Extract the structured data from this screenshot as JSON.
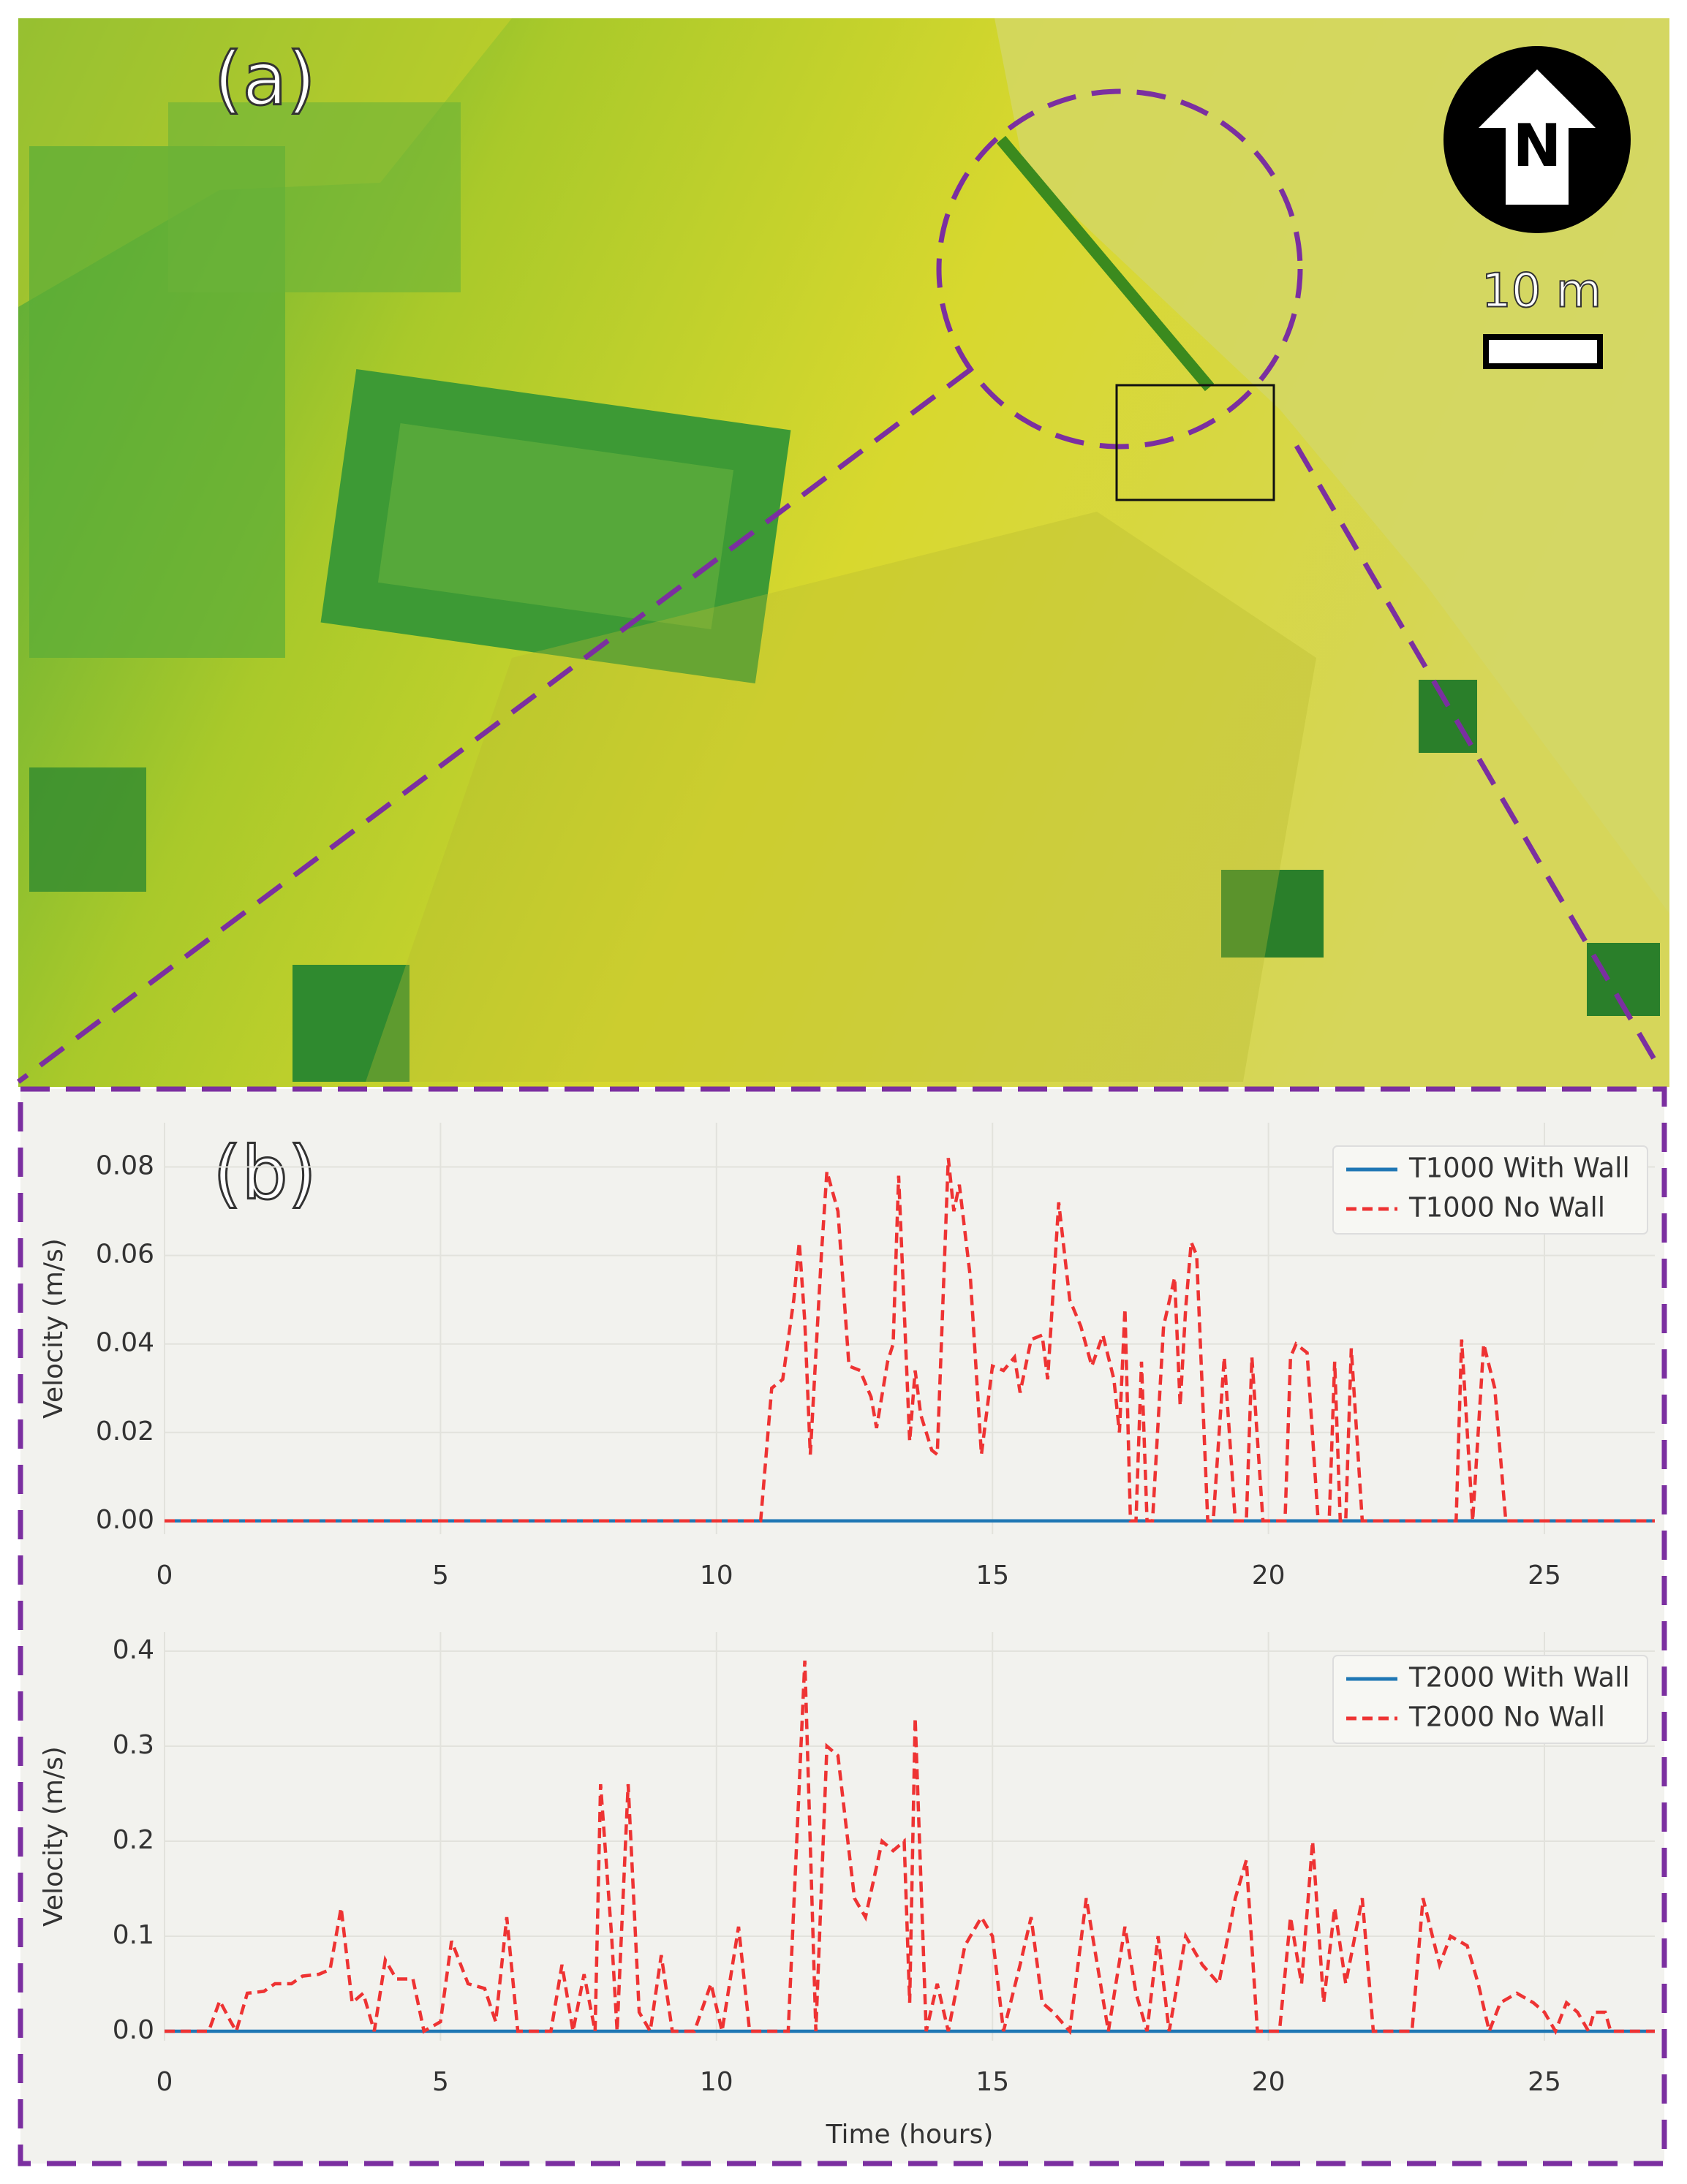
{
  "map": {
    "label": "(a)",
    "north": "N",
    "scale": "10 m"
  },
  "plot_label": "(b)",
  "chart_data": [
    {
      "type": "line",
      "ylabel": "Velocity (m/s)",
      "xlim": [
        0,
        27
      ],
      "xticks": [
        0,
        5,
        10,
        15,
        20,
        25
      ],
      "ylim": [
        -0.003,
        0.09
      ],
      "yticks": [
        {
          "value": 0,
          "label": "0.00"
        },
        0.02,
        0.04,
        0.06,
        0.08
      ],
      "grid": true,
      "legend": "upper right",
      "series": [
        {
          "name": "T1000 With Wall",
          "color": "#1f77b4",
          "dash": "solid",
          "x": [
            0,
            27
          ],
          "values": [
            0,
            0
          ]
        },
        {
          "name": "T1000 No Wall",
          "color": "#ee3333",
          "dash": "dashed",
          "x": [
            0,
            10.8,
            11.0,
            11.2,
            11.4,
            11.5,
            11.6,
            11.7,
            11.9,
            12.0,
            12.2,
            12.4,
            12.6,
            12.8,
            12.9,
            13.1,
            13.2,
            13.3,
            13.5,
            13.6,
            13.7,
            13.9,
            14.0,
            14.2,
            14.3,
            14.4,
            14.6,
            14.8,
            15.0,
            15.2,
            15.4,
            15.5,
            15.7,
            15.9,
            16.0,
            16.2,
            16.4,
            16.6,
            16.8,
            17.0,
            17.2,
            17.3,
            17.4,
            17.5,
            17.6,
            17.7,
            17.8,
            17.9,
            18.1,
            18.3,
            18.4,
            18.5,
            18.6,
            18.7,
            18.9,
            19.0,
            19.2,
            19.4,
            19.6,
            19.7,
            19.9,
            20.3,
            20.4,
            20.5,
            20.7,
            20.9,
            21.1,
            21.2,
            21.3,
            21.4,
            21.5,
            21.7,
            23.4,
            23.5,
            23.7,
            23.9,
            24.1,
            24.3,
            27
          ],
          "values": [
            0,
            0,
            0.03,
            0.032,
            0.05,
            0.063,
            0.045,
            0.015,
            0.06,
            0.079,
            0.07,
            0.035,
            0.034,
            0.028,
            0.021,
            0.036,
            0.04,
            0.078,
            0.018,
            0.034,
            0.024,
            0.016,
            0.015,
            0.082,
            0.07,
            0.076,
            0.055,
            0.015,
            0.035,
            0.034,
            0.037,
            0.029,
            0.041,
            0.042,
            0.032,
            0.072,
            0.05,
            0.044,
            0.035,
            0.042,
            0.032,
            0.02,
            0.048,
            0,
            0,
            0.036,
            0,
            0,
            0.044,
            0.055,
            0.026,
            0.048,
            0.063,
            0.06,
            0,
            0,
            0.037,
            0,
            0,
            0.037,
            0,
            0,
            0.037,
            0.04,
            0.038,
            0,
            0,
            0.036,
            0,
            0,
            0.039,
            0,
            0,
            0.041,
            0,
            0.04,
            0.03,
            0,
            0
          ]
        }
      ]
    },
    {
      "type": "line",
      "ylabel": "Velocity (m/s)",
      "xlabel": "Time (hours)",
      "xlim": [
        0,
        27
      ],
      "xticks": [
        0,
        5,
        10,
        15,
        20,
        25
      ],
      "ylim": [
        -0.01,
        0.42
      ],
      "yticks": [
        {
          "value": 0,
          "label": "0.0"
        },
        0.1,
        0.2,
        0.3,
        0.4
      ],
      "grid": true,
      "legend": "upper right",
      "series": [
        {
          "name": "T2000 With Wall",
          "color": "#1f77b4",
          "dash": "solid",
          "x": [
            0,
            27
          ],
          "values": [
            0,
            0
          ]
        },
        {
          "name": "T2000 No Wall",
          "color": "#ee3333",
          "dash": "dashed",
          "x": [
            0,
            0.8,
            1.0,
            1.2,
            1.3,
            1.5,
            1.8,
            2.0,
            2.3,
            2.5,
            2.8,
            3.0,
            3.2,
            3.4,
            3.6,
            3.8,
            4.0,
            4.2,
            4.5,
            4.7,
            5.0,
            5.2,
            5.5,
            5.8,
            6.0,
            6.2,
            6.4,
            7.0,
            7.2,
            7.4,
            7.6,
            7.8,
            7.9,
            8.1,
            8.2,
            8.4,
            8.6,
            8.8,
            9.0,
            9.2,
            9.6,
            9.9,
            10.1,
            10.4,
            10.6,
            11.3,
            11.6,
            11.8,
            12.0,
            12.2,
            12.5,
            12.7,
            13.0,
            13.2,
            13.4,
            13.5,
            13.6,
            13.8,
            14.0,
            14.2,
            14.5,
            14.8,
            15.0,
            15.2,
            15.5,
            15.7,
            15.9,
            16.1,
            16.4,
            16.7,
            16.9,
            17.1,
            17.4,
            17.6,
            17.8,
            18.0,
            18.2,
            18.5,
            18.8,
            19.1,
            19.4,
            19.6,
            19.8,
            20.2,
            20.4,
            20.6,
            20.8,
            21.0,
            21.2,
            21.4,
            21.7,
            21.9,
            22.6,
            22.8,
            23.1,
            23.3,
            23.6,
            23.8,
            24.0,
            24.2,
            24.5,
            24.8,
            25.0,
            25.2,
            25.4,
            25.6,
            25.8,
            25.9,
            26.1,
            26.2,
            27
          ],
          "values": [
            0,
            0,
            0.032,
            0.01,
            0,
            0.04,
            0.042,
            0.05,
            0.05,
            0.058,
            0.06,
            0.065,
            0.13,
            0.03,
            0.04,
            0,
            0.075,
            0.055,
            0.055,
            0,
            0.01,
            0.095,
            0.05,
            0.045,
            0.01,
            0.12,
            0,
            0,
            0.07,
            0,
            0.06,
            0,
            0.26,
            0.1,
            0,
            0.26,
            0.02,
            0,
            0.08,
            0,
            0,
            0.05,
            0,
            0.11,
            0,
            0,
            0.39,
            0,
            0.3,
            0.29,
            0.14,
            0.12,
            0.2,
            0.19,
            0.2,
            0.03,
            0.33,
            0,
            0.05,
            0,
            0.09,
            0.12,
            0.1,
            0,
            0.07,
            0.12,
            0.03,
            0.02,
            0,
            0.14,
            0.07,
            0,
            0.11,
            0.04,
            0,
            0.1,
            0,
            0.1,
            0.07,
            0.05,
            0.14,
            0.18,
            0,
            0,
            0.12,
            0.05,
            0.2,
            0.03,
            0.13,
            0.05,
            0.14,
            0,
            0,
            0.14,
            0.07,
            0.1,
            0.09,
            0.05,
            0,
            0.03,
            0.04,
            0.03,
            0.02,
            0,
            0.03,
            0.02,
            0,
            0.02,
            0.02,
            0,
            0
          ]
        }
      ]
    }
  ]
}
